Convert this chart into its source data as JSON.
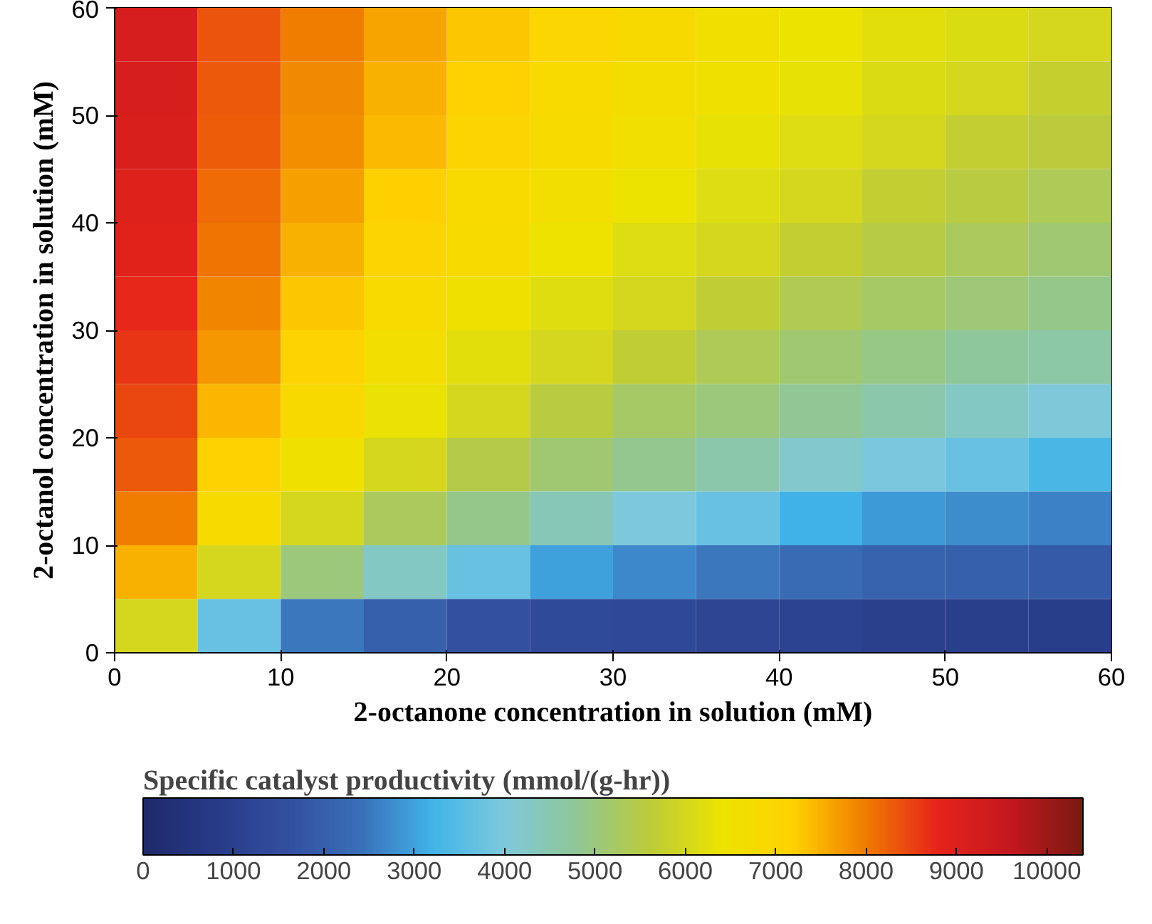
{
  "chart_data": {
    "type": "heatmap",
    "xlabel": "2-octanone concentration in solution (mM)",
    "ylabel": "2-octanol concentration in solution (mM)",
    "clabel": "Specific catalyst productivity (mmol/(g-hr))",
    "x": [
      2.5,
      7.5,
      12.5,
      17.5,
      22.5,
      27.5,
      32.5,
      37.5,
      42.5,
      47.5,
      52.5,
      57.5
    ],
    "y": [
      57.5,
      52.5,
      47.5,
      42.5,
      37.5,
      32.5,
      27.5,
      22.5,
      17.5,
      12.5,
      7.5,
      2.5
    ],
    "cells": [
      [
        9200,
        8350,
        8000,
        7600,
        7300,
        7000,
        6850,
        6600,
        6400,
        6250,
        6100,
        6000
      ],
      [
        9150,
        8300,
        7850,
        7500,
        7150,
        6900,
        6700,
        6500,
        6300,
        6100,
        6000,
        5750
      ],
      [
        9100,
        8250,
        7800,
        7400,
        7050,
        6800,
        6550,
        6300,
        6150,
        6000,
        5700,
        5600
      ],
      [
        9000,
        8150,
        7650,
        7200,
        6900,
        6650,
        6400,
        6150,
        6000,
        5700,
        5550,
        5350
      ],
      [
        8900,
        8050,
        7500,
        7050,
        6750,
        6450,
        6150,
        6000,
        5700,
        5500,
        5300,
        5100
      ],
      [
        8750,
        7900,
        7300,
        6900,
        6500,
        6200,
        6000,
        5650,
        5400,
        5200,
        5050,
        4900
      ],
      [
        8650,
        7750,
        7100,
        6650,
        6250,
        6000,
        5650,
        5350,
        5100,
        4950,
        4750,
        4600
      ],
      [
        8450,
        7450,
        6850,
        6350,
        6000,
        5550,
        5200,
        5000,
        4800,
        4550,
        4300,
        4050
      ],
      [
        8300,
        7150,
        6500,
        6000,
        5450,
        5100,
        4850,
        4550,
        4200,
        3950,
        3700,
        3300
      ],
      [
        8000,
        6750,
        6000,
        5300,
        4900,
        4400,
        4000,
        3700,
        3200,
        2900,
        2750,
        2600
      ],
      [
        7500,
        6000,
        5000,
        4300,
        3700,
        3000,
        2700,
        2500,
        2300,
        2100,
        2000,
        1900
      ],
      [
        6000,
        3700,
        2500,
        2000,
        1600,
        1400,
        1300,
        1200,
        1100,
        1000,
        950,
        900
      ]
    ],
    "xlim": [
      0,
      60
    ],
    "ylim": [
      0,
      60
    ],
    "xticks": [
      0,
      10,
      20,
      30,
      40,
      50,
      60
    ],
    "yticks": [
      0,
      10,
      20,
      30,
      40,
      50,
      60
    ],
    "clim": [
      0,
      10400
    ],
    "cticks": [
      0,
      1000,
      2000,
      3000,
      4000,
      5000,
      6000,
      7000,
      8000,
      9000,
      10000
    ],
    "colors": [
      "#1f2a6b",
      "#283b88",
      "#3350a0",
      "#3a6fb8",
      "#41b4e8",
      "#7ec8dc",
      "#90c795",
      "#bccb3a",
      "#ece300",
      "#ffd200",
      "#f07c00",
      "#e6241a",
      "#c5181f",
      "#7a1a12"
    ]
  }
}
